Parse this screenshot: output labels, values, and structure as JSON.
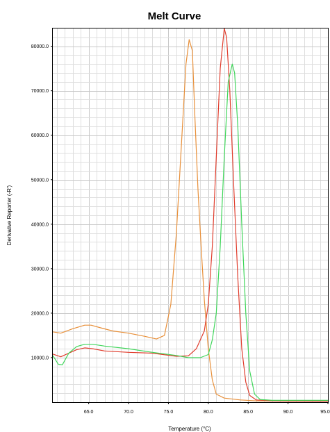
{
  "chart_data": {
    "type": "line",
    "title": "Melt Curve",
    "xlabel": "Temperature (°C)",
    "ylabel": "Derivative Reporter (-R')",
    "xlim": [
      60.5,
      95.0
    ],
    "ylim": [
      0,
      84000
    ],
    "x_ticks": [
      "65.0",
      "70.0",
      "75.0",
      "80.0",
      "85.0",
      "90.0",
      "95.0"
    ],
    "x_tick_values": [
      65,
      70,
      75,
      80,
      85,
      90,
      95
    ],
    "y_ticks": [
      "10000.0",
      "20000.0",
      "30000.0",
      "40000.0",
      "50000.0",
      "60000.0",
      "70000.0",
      "80000.0"
    ],
    "y_tick_values": [
      10000,
      20000,
      30000,
      40000,
      50000,
      60000,
      70000,
      80000
    ],
    "grid": true,
    "series": [
      {
        "color": "#e8903a",
        "x": [
          60.5,
          61.5,
          63.0,
          64.5,
          65.3,
          66.5,
          68.0,
          70.0,
          72.0,
          73.5,
          74.5,
          75.3,
          76.0,
          76.7,
          77.2,
          77.6,
          78.0,
          78.3,
          78.7,
          79.1,
          79.5,
          80.0,
          80.5,
          81.0,
          82.0,
          84.0,
          86.0,
          90.0,
          95.0
        ],
        "y": [
          15800,
          15500,
          16500,
          17300,
          17300,
          16700,
          16000,
          15500,
          14800,
          14200,
          15000,
          22000,
          38000,
          60000,
          76000,
          81500,
          79000,
          65000,
          48000,
          35000,
          23000,
          12000,
          5000,
          1800,
          900,
          500,
          300,
          200,
          200
        ]
      },
      {
        "color": "#e03c2c",
        "x": [
          60.5,
          61.5,
          62.5,
          63.5,
          64.5,
          65.5,
          67.0,
          70.0,
          73.0,
          76.0,
          77.5,
          78.5,
          79.5,
          80.0,
          80.5,
          81.0,
          81.5,
          82.0,
          82.3,
          82.7,
          83.2,
          83.7,
          84.2,
          84.7,
          85.2,
          86.0,
          88.0,
          95.0
        ],
        "y": [
          10800,
          10200,
          11000,
          11800,
          12200,
          12000,
          11500,
          11200,
          11000,
          10300,
          10400,
          12000,
          16000,
          22000,
          35000,
          55000,
          75000,
          84000,
          82000,
          70000,
          48000,
          28000,
          12000,
          4500,
          1500,
          500,
          300,
          200
        ]
      },
      {
        "color": "#3fd65a",
        "x": [
          60.5,
          61.2,
          61.7,
          62.5,
          63.5,
          64.5,
          65.5,
          67.0,
          70.0,
          73.0,
          76.0,
          77.5,
          79.0,
          80.0,
          80.5,
          81.0,
          81.5,
          82.0,
          82.5,
          83.0,
          83.3,
          83.7,
          84.2,
          84.7,
          85.2,
          85.8,
          86.5,
          88.0,
          95.0
        ],
        "y": [
          10500,
          8500,
          8400,
          11000,
          12500,
          13000,
          13000,
          12600,
          12000,
          11200,
          10500,
          10000,
          10000,
          10700,
          14000,
          20000,
          35000,
          55000,
          72000,
          76000,
          74000,
          62000,
          40000,
          20000,
          7000,
          1800,
          600,
          400,
          400
        ]
      }
    ]
  }
}
